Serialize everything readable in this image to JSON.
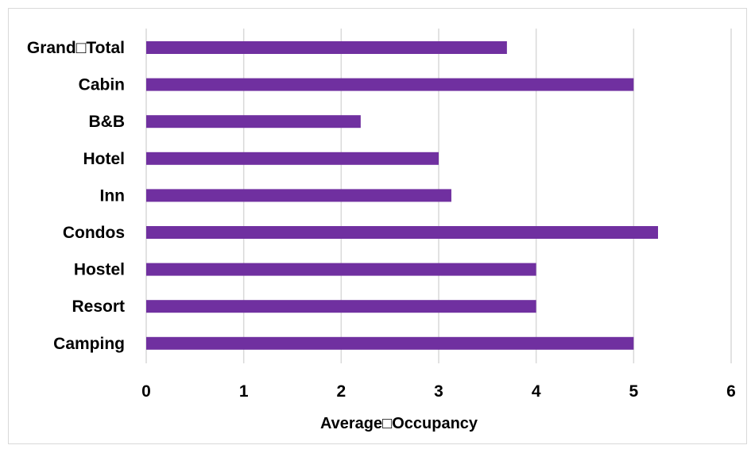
{
  "chart_data": {
    "type": "bar",
    "orientation": "horizontal",
    "categories": [
      "Grand□Total",
      "Cabin",
      "B&B",
      "Hotel",
      "Inn",
      "Condos",
      "Hostel",
      "Resort",
      "Camping"
    ],
    "values": [
      3.7,
      5.0,
      2.2,
      3.0,
      3.13,
      5.25,
      4.0,
      4.0,
      5.0
    ],
    "xlabel": "Average□Occupancy",
    "ylabel": "",
    "xlim": [
      0,
      6
    ],
    "xticks": [
      "0",
      "1",
      "2",
      "3",
      "4",
      "5",
      "6"
    ],
    "grid": true,
    "bar_color": "#7030a0",
    "grid_color": "#d9d9d9"
  }
}
